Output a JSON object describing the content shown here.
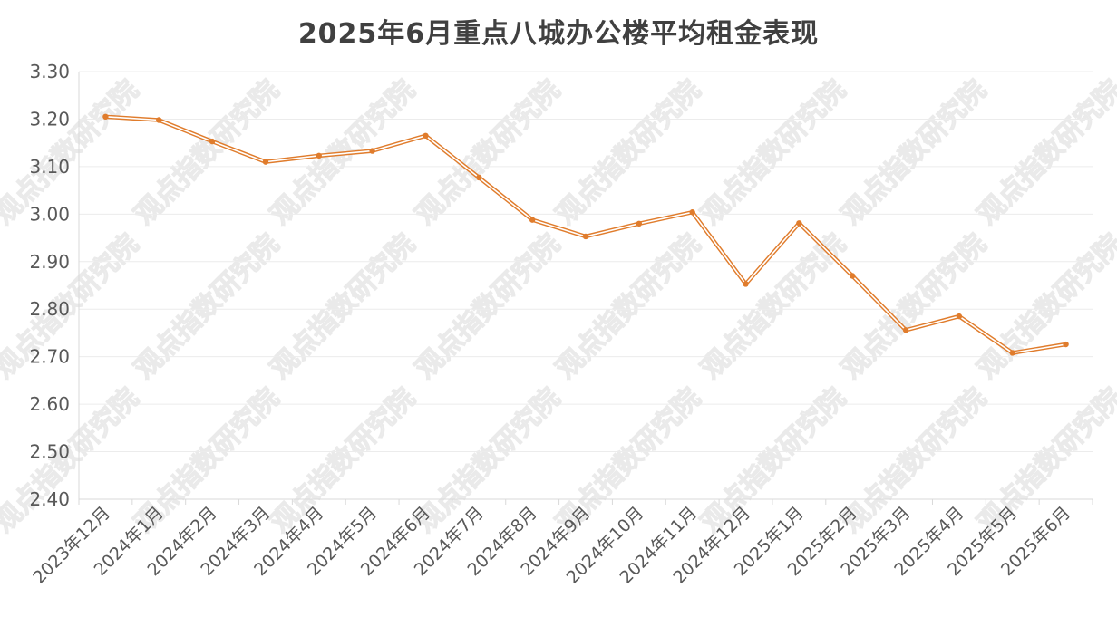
{
  "chart_data": {
    "type": "line",
    "title": "2025年6月重点八城办公楼平均租金表现",
    "xlabel": "",
    "ylabel": "",
    "categories": [
      "2023年12月",
      "2024年1月",
      "2024年2月",
      "2024年3月",
      "2024年4月",
      "2024年5月",
      "2024年6月",
      "2024年7月",
      "2024年8月",
      "2024年9月",
      "2024年10月",
      "2024年11月",
      "2024年12月",
      "2025年1月",
      "2025年2月",
      "2025年3月",
      "2025年4月",
      "2025年5月",
      "2025年6月"
    ],
    "series": [
      {
        "values": [
          3.205,
          3.198,
          3.153,
          3.11,
          3.123,
          3.133,
          3.165,
          3.077,
          2.988,
          2.953,
          2.98,
          3.004,
          2.853,
          2.981,
          2.87,
          2.756,
          2.785,
          2.708,
          2.726
        ]
      }
    ],
    "ylim": [
      2.4,
      3.3
    ],
    "yticks": [
      "3.30",
      "3.20",
      "3.10",
      "3.00",
      "2.90",
      "2.80",
      "2.70",
      "2.60",
      "2.50",
      "2.40"
    ],
    "grid": true,
    "legend": "none",
    "line_color": "#E07C2C",
    "watermark": "观点指数研究院"
  }
}
